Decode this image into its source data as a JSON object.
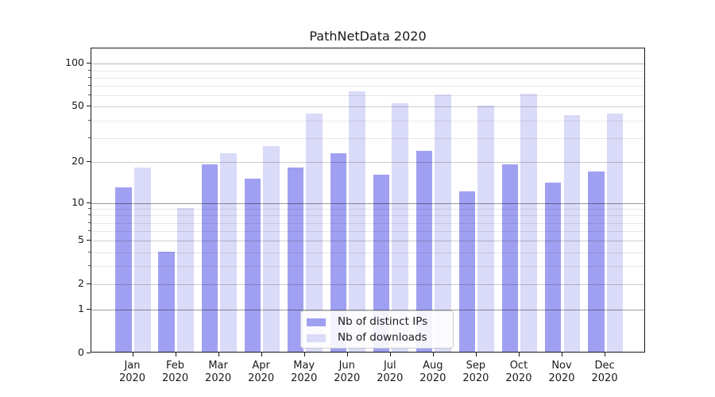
{
  "chart_data": {
    "type": "bar",
    "title": "PathNetData 2020",
    "categories": [
      "Jan",
      "Feb",
      "Mar",
      "Apr",
      "May",
      "Jun",
      "Jul",
      "Aug",
      "Sep",
      "Oct",
      "Nov",
      "Dec"
    ],
    "category_year": "2020",
    "series": [
      {
        "name": "Nb of distinct IPs",
        "color": "#a0a0f2",
        "values": [
          13,
          4,
          19,
          15,
          18,
          23,
          16,
          24,
          12,
          19,
          14,
          17
        ]
      },
      {
        "name": "Nb of downloads",
        "color": "#dadaf9",
        "values": [
          18,
          9,
          23,
          26,
          44,
          63,
          52,
          60,
          50,
          61,
          43,
          44
        ]
      }
    ],
    "yscale": "log10(1+v)",
    "ylim": [
      0,
      128
    ],
    "yticks": [
      0,
      1,
      2,
      5,
      10,
      20,
      50,
      100
    ],
    "ytick_labels": [
      "0",
      "1",
      "2",
      "5",
      "10",
      "20",
      "50",
      "100"
    ],
    "yticks_minor": [
      3,
      4,
      6,
      7,
      8,
      9,
      30,
      40,
      60,
      70,
      80,
      90
    ],
    "grid": true,
    "grid_over_bars": true,
    "legend_position": "lower center",
    "background_color": "#ffffff",
    "spine_color": "#1a1a1a"
  }
}
